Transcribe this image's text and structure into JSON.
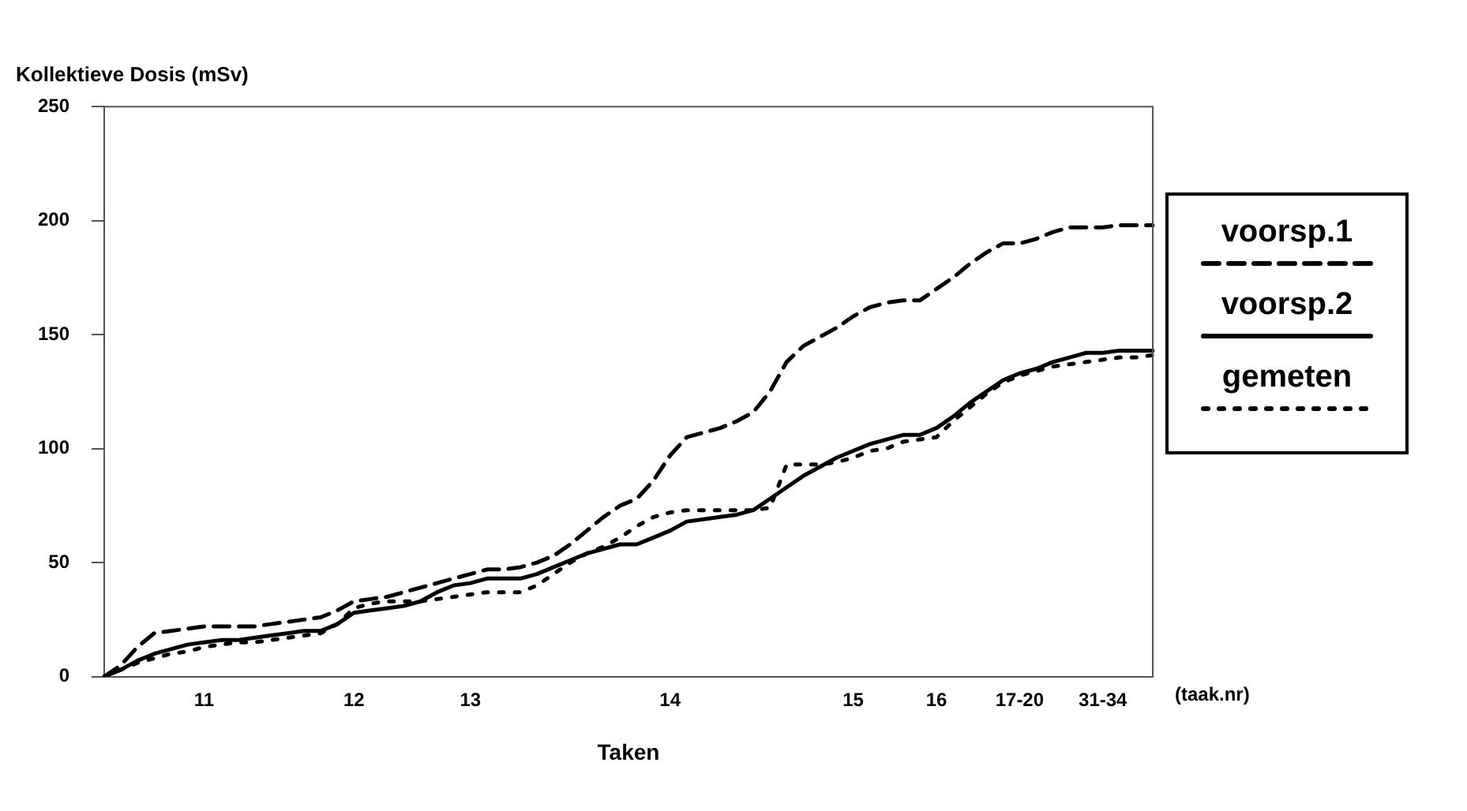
{
  "chart_data": {
    "type": "line",
    "title": "Kollektieve Dosis (mSv)",
    "xlabel": "Taken",
    "annotations": [
      "(taak.nr)"
    ],
    "categories": [
      null,
      null,
      null,
      null,
      null,
      null,
      "11",
      null,
      null,
      null,
      null,
      null,
      null,
      null,
      null,
      "12",
      null,
      null,
      null,
      null,
      null,
      null,
      "13",
      null,
      null,
      null,
      null,
      null,
      null,
      null,
      null,
      null,
      null,
      null,
      "14",
      null,
      null,
      null,
      null,
      null,
      null,
      null,
      null,
      null,
      null,
      "15",
      null,
      null,
      null,
      null,
      "16",
      null,
      null,
      null,
      null,
      "17-20",
      null,
      null,
      null,
      null,
      "31-34",
      null,
      null,
      null
    ],
    "series": [
      {
        "name": "voorsp.1",
        "color": "#000000",
        "line_style": "dashed",
        "values": [
          0,
          5,
          13,
          19,
          20,
          21,
          22,
          22,
          22,
          22,
          23,
          24,
          25,
          26,
          29,
          33,
          34,
          35,
          37,
          39,
          41,
          43,
          45,
          47,
          47,
          48,
          50,
          53,
          58,
          64,
          70,
          75,
          78,
          86,
          97,
          105,
          107,
          109,
          112,
          116,
          125,
          138,
          145,
          149,
          153,
          158,
          162,
          164,
          165,
          165,
          170,
          175,
          181,
          186,
          190,
          190,
          192,
          195,
          197,
          197,
          197,
          198,
          198,
          198
        ]
      },
      {
        "name": "voorsp.2",
        "color": "#000000",
        "line_style": "solid",
        "values": [
          0,
          3,
          7,
          10,
          12,
          14,
          15,
          16,
          16,
          17,
          18,
          19,
          20,
          20,
          23,
          28,
          29,
          30,
          31,
          33,
          37,
          40,
          41,
          43,
          43,
          43,
          45,
          48,
          51,
          54,
          56,
          58,
          58,
          61,
          64,
          68,
          69,
          70,
          71,
          73,
          78,
          83,
          88,
          92,
          96,
          99,
          102,
          104,
          106,
          106,
          109,
          114,
          120,
          125,
          130,
          133,
          135,
          138,
          140,
          142,
          142,
          143,
          143,
          143
        ]
      },
      {
        "name": "gemeten",
        "color": "#000000",
        "line_style": "dotted",
        "values": [
          0,
          3,
          6,
          8,
          10,
          11,
          13,
          14,
          15,
          15,
          16,
          17,
          18,
          19,
          23,
          30,
          32,
          33,
          33,
          33,
          34,
          35,
          36,
          37,
          37,
          37,
          40,
          45,
          50,
          54,
          57,
          61,
          66,
          70,
          72,
          73,
          73,
          73,
          73,
          73,
          74,
          93,
          93,
          93,
          94,
          96,
          99,
          100,
          103,
          104,
          105,
          112,
          118,
          124,
          129,
          132,
          134,
          136,
          137,
          138,
          139,
          140,
          140,
          141
        ]
      }
    ],
    "ylim": [
      0,
      250
    ],
    "yticks": [
      0,
      50,
      100,
      150,
      200,
      250
    ],
    "grid": false,
    "legend": "right",
    "marker": "none"
  }
}
